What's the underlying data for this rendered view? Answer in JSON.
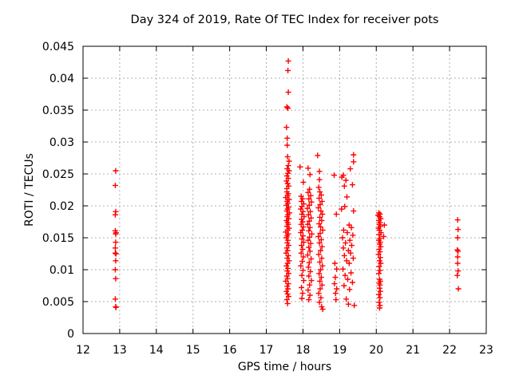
{
  "window": {
    "background": "#ffffff"
  },
  "chart_data": {
    "type": "scatter",
    "title": "Day 324 of 2019, Rate Of TEC Index for receiver pots",
    "xlabel": "GPS time / hours",
    "ylabel": "ROTI / TECUs",
    "xlim": [
      12,
      23
    ],
    "ylim": [
      0,
      0.045
    ],
    "xticks": [
      12,
      13,
      14,
      15,
      16,
      17,
      18,
      19,
      20,
      21,
      22,
      23
    ],
    "ytick_values": [
      0,
      0.005,
      0.01,
      0.015,
      0.02,
      0.025,
      0.03,
      0.035,
      0.04,
      0.045
    ],
    "ytick_labels": [
      "0",
      "0.005",
      "0.01",
      "0.015",
      "0.02",
      "0.025",
      "0.03",
      "0.035",
      "0.04",
      "0.045"
    ],
    "grid": true,
    "legend_position": "none",
    "marker": "plus",
    "marker_color": "#ff0000",
    "grid_color": "#b0b0b0",
    "axis_color": "#000000",
    "text_color": "#000000",
    "series": [
      {
        "name": "ROTI",
        "points": [
          [
            12.89,
            0.0255
          ],
          [
            12.88,
            0.0232
          ],
          [
            12.89,
            0.0191
          ],
          [
            12.88,
            0.0186
          ],
          [
            12.88,
            0.0161
          ],
          [
            12.9,
            0.0158
          ],
          [
            12.89,
            0.0156
          ],
          [
            12.89,
            0.0143
          ],
          [
            12.88,
            0.0134
          ],
          [
            12.88,
            0.0126
          ],
          [
            12.9,
            0.0125
          ],
          [
            12.89,
            0.0114
          ],
          [
            12.88,
            0.01
          ],
          [
            12.89,
            0.0086
          ],
          [
            12.88,
            0.0054
          ],
          [
            12.89,
            0.0042
          ],
          [
            12.9,
            0.0041
          ],
          [
            17.6,
            0.0427
          ],
          [
            17.59,
            0.0412
          ],
          [
            17.6,
            0.0378
          ],
          [
            17.56,
            0.0355
          ],
          [
            17.59,
            0.0353
          ],
          [
            17.55,
            0.0323
          ],
          [
            17.57,
            0.0306
          ],
          [
            17.57,
            0.0295
          ],
          [
            17.58,
            0.0277
          ],
          [
            17.62,
            0.027
          ],
          [
            17.6,
            0.0263
          ],
          [
            17.57,
            0.0258
          ],
          [
            17.62,
            0.0255
          ],
          [
            17.59,
            0.0251
          ],
          [
            17.56,
            0.0247
          ],
          [
            17.6,
            0.0243
          ],
          [
            17.55,
            0.0239
          ],
          [
            17.58,
            0.0235
          ],
          [
            17.61,
            0.0231
          ],
          [
            17.56,
            0.0227
          ],
          [
            17.56,
            0.0222
          ],
          [
            17.6,
            0.0219
          ],
          [
            17.58,
            0.0216
          ],
          [
            17.53,
            0.0213
          ],
          [
            17.62,
            0.021
          ],
          [
            17.57,
            0.0207
          ],
          [
            17.59,
            0.0204
          ],
          [
            17.55,
            0.0201
          ],
          [
            17.61,
            0.0198
          ],
          [
            17.58,
            0.0195
          ],
          [
            17.56,
            0.0192
          ],
          [
            17.63,
            0.0189
          ],
          [
            17.59,
            0.0186
          ],
          [
            17.57,
            0.0183
          ],
          [
            17.61,
            0.018
          ],
          [
            17.55,
            0.0177
          ],
          [
            17.58,
            0.0174
          ],
          [
            17.6,
            0.0171
          ],
          [
            17.56,
            0.0168
          ],
          [
            17.62,
            0.0165
          ],
          [
            17.58,
            0.0162
          ],
          [
            17.53,
            0.0159
          ],
          [
            17.6,
            0.0156
          ],
          [
            17.57,
            0.0153
          ],
          [
            17.55,
            0.015
          ],
          [
            17.59,
            0.0146
          ],
          [
            17.57,
            0.0142
          ],
          [
            17.61,
            0.0138
          ],
          [
            17.56,
            0.0134
          ],
          [
            17.58,
            0.013
          ],
          [
            17.54,
            0.0126
          ],
          [
            17.6,
            0.0122
          ],
          [
            17.57,
            0.0118
          ],
          [
            17.62,
            0.0114
          ],
          [
            17.58,
            0.011
          ],
          [
            17.55,
            0.0106
          ],
          [
            17.59,
            0.0102
          ],
          [
            17.57,
            0.0098
          ],
          [
            17.61,
            0.0094
          ],
          [
            17.56,
            0.009
          ],
          [
            17.58,
            0.0086
          ],
          [
            17.53,
            0.0082
          ],
          [
            17.6,
            0.0078
          ],
          [
            17.57,
            0.0074
          ],
          [
            17.59,
            0.007
          ],
          [
            17.55,
            0.0066
          ],
          [
            17.58,
            0.0062
          ],
          [
            17.61,
            0.0058
          ],
          [
            17.56,
            0.0053
          ],
          [
            17.58,
            0.0047
          ],
          [
            17.92,
            0.0261
          ],
          [
            18.01,
            0.0237
          ],
          [
            17.95,
            0.0215
          ],
          [
            17.99,
            0.0211
          ],
          [
            17.96,
            0.0207
          ],
          [
            18.02,
            0.0203
          ],
          [
            17.97,
            0.0199
          ],
          [
            17.94,
            0.0195
          ],
          [
            18.0,
            0.0191
          ],
          [
            17.97,
            0.0187
          ],
          [
            18.03,
            0.0183
          ],
          [
            17.96,
            0.0179
          ],
          [
            17.99,
            0.0175
          ],
          [
            17.95,
            0.0171
          ],
          [
            18.01,
            0.0167
          ],
          [
            17.98,
            0.0162
          ],
          [
            17.94,
            0.0158
          ],
          [
            18.0,
            0.0153
          ],
          [
            17.97,
            0.0148
          ],
          [
            18.02,
            0.0143
          ],
          [
            17.96,
            0.0138
          ],
          [
            17.99,
            0.0132
          ],
          [
            17.95,
            0.0126
          ],
          [
            18.01,
            0.012
          ],
          [
            17.98,
            0.0113
          ],
          [
            17.94,
            0.0106
          ],
          [
            18.0,
            0.0099
          ],
          [
            17.97,
            0.0091
          ],
          [
            18.02,
            0.0083
          ],
          [
            17.96,
            0.0072
          ],
          [
            17.99,
            0.0063
          ],
          [
            17.97,
            0.0055
          ],
          [
            18.14,
            0.0259
          ],
          [
            18.19,
            0.0249
          ],
          [
            18.18,
            0.0226
          ],
          [
            18.14,
            0.0221
          ],
          [
            18.21,
            0.0216
          ],
          [
            18.16,
            0.0211
          ],
          [
            18.23,
            0.0206
          ],
          [
            18.17,
            0.0201
          ],
          [
            18.12,
            0.0196
          ],
          [
            18.2,
            0.0191
          ],
          [
            18.15,
            0.0186
          ],
          [
            18.22,
            0.0181
          ],
          [
            18.17,
            0.0176
          ],
          [
            18.13,
            0.0171
          ],
          [
            18.19,
            0.0166
          ],
          [
            18.16,
            0.0161
          ],
          [
            18.24,
            0.0156
          ],
          [
            18.18,
            0.0151
          ],
          [
            18.14,
            0.0146
          ],
          [
            18.21,
            0.0141
          ],
          [
            18.16,
            0.0135
          ],
          [
            18.19,
            0.0129
          ],
          [
            18.13,
            0.0123
          ],
          [
            18.22,
            0.0117
          ],
          [
            18.17,
            0.0111
          ],
          [
            18.15,
            0.0104
          ],
          [
            18.2,
            0.0097
          ],
          [
            18.16,
            0.009
          ],
          [
            18.23,
            0.0083
          ],
          [
            18.18,
            0.0076
          ],
          [
            18.14,
            0.0068
          ],
          [
            18.19,
            0.006
          ],
          [
            18.16,
            0.0053
          ],
          [
            18.4,
            0.0279
          ],
          [
            18.45,
            0.0254
          ],
          [
            18.45,
            0.0241
          ],
          [
            18.43,
            0.0229
          ],
          [
            18.46,
            0.0222
          ],
          [
            18.5,
            0.0217
          ],
          [
            18.44,
            0.0212
          ],
          [
            18.52,
            0.0207
          ],
          [
            18.47,
            0.0202
          ],
          [
            18.42,
            0.0197
          ],
          [
            18.49,
            0.0192
          ],
          [
            18.53,
            0.0187
          ],
          [
            18.46,
            0.0182
          ],
          [
            18.51,
            0.0177
          ],
          [
            18.44,
            0.0172
          ],
          [
            18.48,
            0.0167
          ],
          [
            18.54,
            0.0162
          ],
          [
            18.47,
            0.0157
          ],
          [
            18.42,
            0.0152
          ],
          [
            18.5,
            0.0147
          ],
          [
            18.45,
            0.0142
          ],
          [
            18.52,
            0.0136
          ],
          [
            18.48,
            0.013
          ],
          [
            18.43,
            0.0124
          ],
          [
            18.51,
            0.0118
          ],
          [
            18.46,
            0.0112
          ],
          [
            18.53,
            0.0106
          ],
          [
            18.48,
            0.01
          ],
          [
            18.44,
            0.0094
          ],
          [
            18.5,
            0.0088
          ],
          [
            18.46,
            0.0082
          ],
          [
            18.52,
            0.0076
          ],
          [
            18.47,
            0.007
          ],
          [
            18.43,
            0.0063
          ],
          [
            18.49,
            0.0056
          ],
          [
            18.45,
            0.0049
          ],
          [
            18.51,
            0.0042
          ],
          [
            18.54,
            0.0038
          ],
          [
            18.85,
            0.0248
          ],
          [
            18.91,
            0.0187
          ],
          [
            18.87,
            0.011
          ],
          [
            18.92,
            0.0101
          ],
          [
            18.88,
            0.0088
          ],
          [
            18.86,
            0.0078
          ],
          [
            18.92,
            0.007
          ],
          [
            18.89,
            0.0063
          ],
          [
            18.9,
            0.0053
          ],
          [
            19.38,
            0.028
          ],
          [
            19.38,
            0.0269
          ],
          [
            19.29,
            0.0258
          ],
          [
            19.1,
            0.0248
          ],
          [
            19.06,
            0.0245
          ],
          [
            19.17,
            0.024
          ],
          [
            19.35,
            0.0233
          ],
          [
            19.13,
            0.0231
          ],
          [
            19.2,
            0.0214
          ],
          [
            19.14,
            0.0199
          ],
          [
            19.05,
            0.0195
          ],
          [
            19.38,
            0.0192
          ],
          [
            19.26,
            0.017
          ],
          [
            19.32,
            0.0166
          ],
          [
            19.11,
            0.0162
          ],
          [
            19.21,
            0.0158
          ],
          [
            19.36,
            0.0154
          ],
          [
            19.08,
            0.015
          ],
          [
            19.28,
            0.0146
          ],
          [
            19.16,
            0.0142
          ],
          [
            19.33,
            0.0138
          ],
          [
            19.1,
            0.0134
          ],
          [
            19.24,
            0.013
          ],
          [
            19.3,
            0.0126
          ],
          [
            19.13,
            0.0122
          ],
          [
            19.37,
            0.0118
          ],
          [
            19.19,
            0.0114
          ],
          [
            19.26,
            0.011
          ],
          [
            19.09,
            0.0101
          ],
          [
            19.31,
            0.0095
          ],
          [
            19.15,
            0.0091
          ],
          [
            19.22,
            0.0085
          ],
          [
            19.35,
            0.008
          ],
          [
            19.12,
            0.0075
          ],
          [
            19.27,
            0.0069
          ],
          [
            19.18,
            0.0054
          ],
          [
            19.24,
            0.0046
          ],
          [
            19.4,
            0.0044
          ],
          [
            20.07,
            0.0189
          ],
          [
            20.1,
            0.0187
          ],
          [
            20.05,
            0.0185
          ],
          [
            20.09,
            0.0183
          ],
          [
            20.12,
            0.018
          ],
          [
            20.07,
            0.0177
          ],
          [
            20.1,
            0.0174
          ],
          [
            20.08,
            0.0171
          ],
          [
            20.22,
            0.017
          ],
          [
            20.11,
            0.0168
          ],
          [
            20.06,
            0.0165
          ],
          [
            20.09,
            0.0162
          ],
          [
            20.13,
            0.0158
          ],
          [
            20.08,
            0.0155
          ],
          [
            20.2,
            0.0152
          ],
          [
            20.1,
            0.0149
          ],
          [
            20.07,
            0.0146
          ],
          [
            20.11,
            0.0143
          ],
          [
            20.09,
            0.014
          ],
          [
            20.12,
            0.0136
          ],
          [
            20.08,
            0.0132
          ],
          [
            20.1,
            0.0128
          ],
          [
            20.06,
            0.0124
          ],
          [
            20.11,
            0.0119
          ],
          [
            20.09,
            0.0114
          ],
          [
            20.12,
            0.011
          ],
          [
            20.08,
            0.0105
          ],
          [
            20.1,
            0.0099
          ],
          [
            20.07,
            0.0094
          ],
          [
            20.09,
            0.0085
          ],
          [
            20.11,
            0.0082
          ],
          [
            20.08,
            0.0079
          ],
          [
            20.1,
            0.0076
          ],
          [
            20.09,
            0.0071
          ],
          [
            20.11,
            0.0066
          ],
          [
            20.07,
            0.0061
          ],
          [
            20.1,
            0.0056
          ],
          [
            20.08,
            0.0049
          ],
          [
            20.1,
            0.0044
          ],
          [
            20.09,
            0.004
          ],
          [
            22.22,
            0.0178
          ],
          [
            22.23,
            0.0163
          ],
          [
            22.22,
            0.015
          ],
          [
            22.21,
            0.0131
          ],
          [
            22.23,
            0.0129
          ],
          [
            22.22,
            0.012
          ],
          [
            22.22,
            0.011
          ],
          [
            22.23,
            0.0098
          ],
          [
            22.21,
            0.0091
          ],
          [
            22.24,
            0.007
          ]
        ]
      }
    ]
  }
}
